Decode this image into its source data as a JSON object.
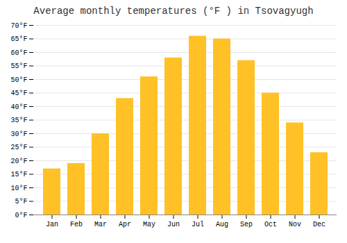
{
  "chart_data": {
    "type": "bar",
    "title": "Average monthly temperatures (°F ) in Tsovagyugh",
    "categories": [
      "Jan",
      "Feb",
      "Mar",
      "Apr",
      "May",
      "Jun",
      "Jul",
      "Aug",
      "Sep",
      "Oct",
      "Nov",
      "Dec"
    ],
    "values": [
      17,
      19,
      30,
      43,
      51,
      58,
      66,
      65,
      57,
      45,
      34,
      23
    ],
    "color": "#FFC125",
    "ylim": [
      0,
      70
    ],
    "yticks": [
      {
        "value": 0,
        "label": "0°F"
      },
      {
        "value": 5,
        "label": "5°F"
      },
      {
        "value": 10,
        "label": "10°F"
      },
      {
        "value": 15,
        "label": "15°F"
      },
      {
        "value": 20,
        "label": "20°F"
      },
      {
        "value": 25,
        "label": "25°F"
      },
      {
        "value": 30,
        "label": "30°F"
      },
      {
        "value": 35,
        "label": "35°F"
      },
      {
        "value": 40,
        "label": "40°F"
      },
      {
        "value": 45,
        "label": "45°F"
      },
      {
        "value": 50,
        "label": "50°F"
      },
      {
        "value": 55,
        "label": "55°F"
      },
      {
        "value": 60,
        "label": "60°F"
      },
      {
        "value": 65,
        "label": "65°F"
      },
      {
        "value": 70,
        "label": "70°F"
      }
    ],
    "grid": true
  }
}
